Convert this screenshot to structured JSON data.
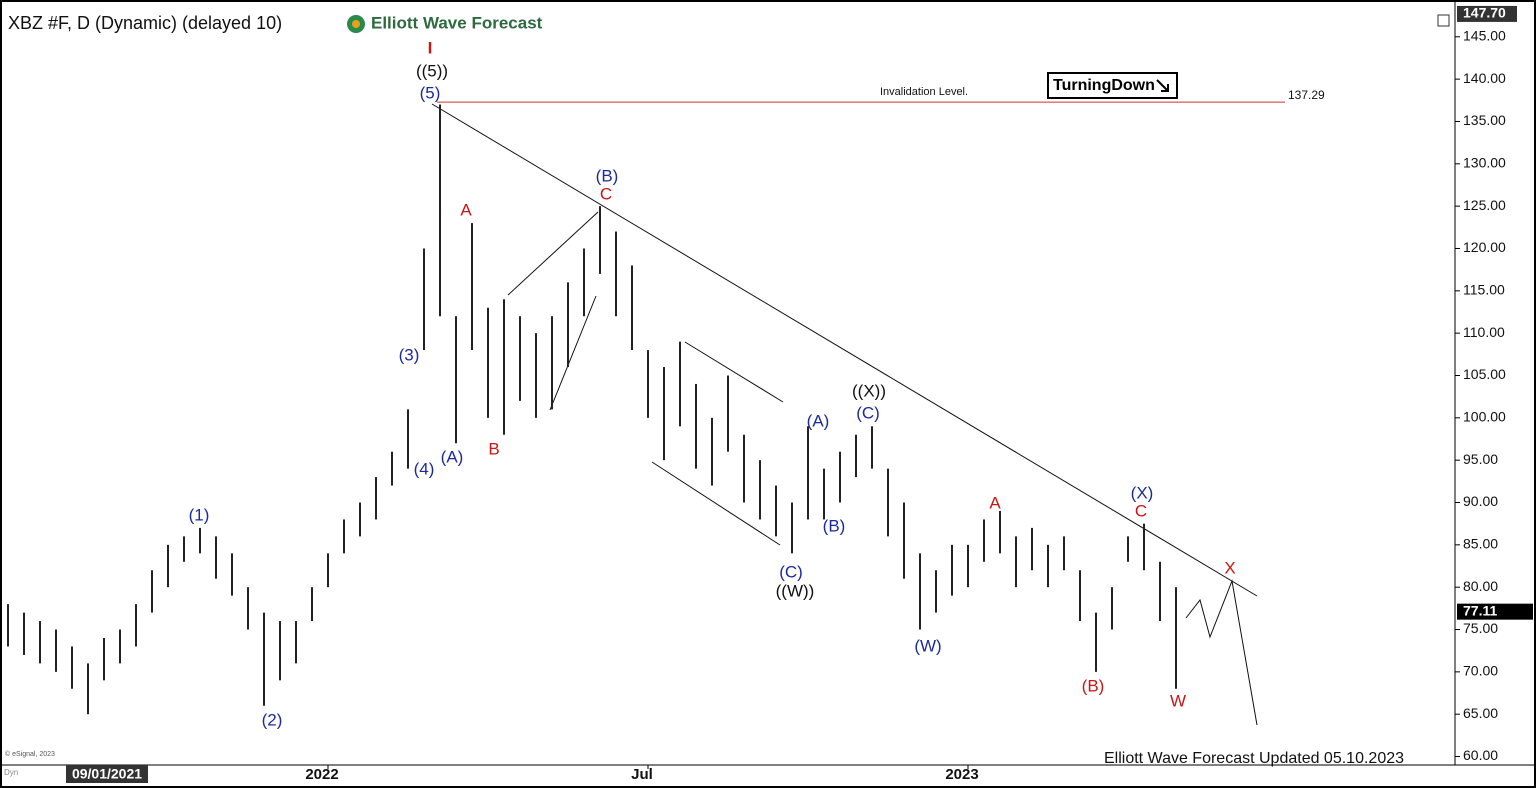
{
  "chart_data": {
    "type": "ohlc",
    "title": "XBZ #F, D (Dynamic) (delayed 10)",
    "logo": "Elliott Wave Forecast",
    "cursor_date": "09/01/2021",
    "categories": [
      null,
      null,
      null,
      null,
      null,
      null,
      null,
      null,
      null,
      null,
      null,
      null,
      null,
      null,
      null,
      null,
      null,
      null,
      null,
      null,
      "2022",
      null,
      null,
      null,
      null,
      null,
      null,
      null,
      null,
      null,
      null,
      null,
      null,
      null,
      null,
      null,
      null,
      null,
      null,
      null,
      "Jul",
      null,
      null,
      null,
      null,
      null,
      null,
      null,
      null,
      null,
      null,
      null,
      null,
      null,
      null,
      null,
      null,
      null,
      null,
      null,
      "2023",
      null,
      null,
      null,
      null,
      null,
      null,
      null,
      null,
      null,
      null,
      null,
      null,
      null
    ],
    "high": [
      78,
      77,
      76,
      75,
      73,
      71,
      74,
      75,
      78,
      82,
      85,
      86,
      87,
      86,
      84,
      80,
      77,
      76,
      76,
      80,
      84,
      88,
      90,
      93,
      96,
      101,
      120,
      137,
      112,
      123,
      113,
      114,
      112,
      110,
      112,
      116,
      120,
      125,
      122,
      118,
      108,
      106,
      109,
      104,
      100,
      105,
      98,
      95,
      92,
      90,
      99,
      94,
      96,
      98,
      99,
      94,
      90,
      84,
      82,
      85,
      85,
      88,
      89,
      86,
      87,
      85,
      86,
      82,
      77,
      80,
      86,
      87.5,
      83,
      80
    ],
    "low": [
      73,
      72,
      71,
      70,
      68,
      65,
      69,
      71,
      73,
      77,
      80,
      83,
      84,
      81,
      79,
      75,
      66,
      69,
      71,
      76,
      80,
      84,
      86,
      88,
      92,
      94,
      108,
      112,
      97,
      108,
      100,
      98,
      102,
      100,
      101,
      106,
      112,
      117,
      112,
      108,
      100,
      95,
      99,
      94,
      92,
      96,
      90,
      88,
      86,
      84,
      88,
      88,
      90,
      93,
      94,
      86,
      81,
      75,
      77,
      79,
      80,
      83,
      84,
      80,
      82,
      80,
      82,
      76,
      70,
      75,
      83,
      82,
      76,
      68
    ],
    "color": "#222222",
    "ylim": [
      59,
      148.4
    ],
    "yticks": [
      {
        "value": 60,
        "label": "60.00"
      },
      {
        "value": 65,
        "label": "65.00"
      },
      {
        "value": 70,
        "label": "70.00"
      },
      {
        "value": 75,
        "label": "75.00"
      },
      {
        "value": 80,
        "label": "80.00"
      },
      {
        "value": 85,
        "label": "85.00"
      },
      {
        "value": 90,
        "label": "90.00"
      },
      {
        "value": 95,
        "label": "95.00"
      },
      {
        "value": 100,
        "label": "100.00"
      },
      {
        "value": 105,
        "label": "105.00"
      },
      {
        "value": 110,
        "label": "110.00"
      },
      {
        "value": 115,
        "label": "115.00"
      },
      {
        "value": 120,
        "label": "120.00"
      },
      {
        "value": 125,
        "label": "125.00"
      },
      {
        "value": 130,
        "label": "130.00"
      },
      {
        "value": 135,
        "label": "135.00"
      },
      {
        "value": 140,
        "label": "140.00"
      },
      {
        "value": 145,
        "label": "145.00"
      }
    ],
    "axis_max": {
      "value": 147.7,
      "label": "147.70"
    },
    "last_price": 77.11,
    "invalidation_level": 137.29,
    "invalidation_text": "Invalidation Level.",
    "badge": "TurningDown",
    "annotations": [
      "I",
      "((5))",
      "(5)",
      "(3)",
      "(4)",
      "(A)",
      "A",
      "B",
      "(B)",
      "C",
      "(1)",
      "(2)",
      "(A)",
      "(B)",
      "(C)",
      "((W))",
      "((X))",
      "(C)",
      "(W)",
      "A",
      "(B)",
      "(X)",
      "C",
      "W",
      "X"
    ],
    "footer": "Elliott Wave Forecast Updated 05.10.2023",
    "copyright": "© eSignal, 2023",
    "corner_label": "Dyn"
  }
}
